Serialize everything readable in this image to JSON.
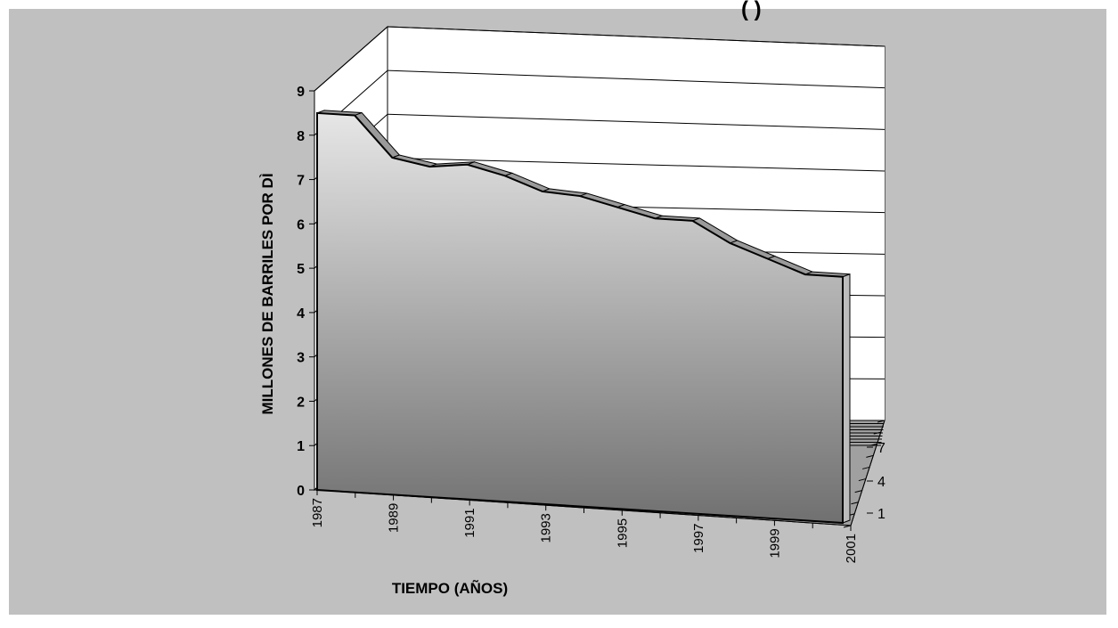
{
  "chart_data": {
    "type": "area",
    "title_fragment": "(                    )",
    "xlabel": "TIEMPO (AÑOS)",
    "ylabel": "MILLONES DE BARRILES POR DÌ",
    "ylim": [
      0,
      9
    ],
    "yticks": [
      "0",
      "1",
      "2",
      "3",
      "4",
      "5",
      "6",
      "7",
      "8",
      "9"
    ],
    "xticks": [
      "1987",
      "1989",
      "1991",
      "1993",
      "1995",
      "1997",
      "1999",
      "2001"
    ],
    "depth_ticks": [
      "1",
      "4",
      "7"
    ],
    "x": [
      1987,
      1988,
      1989,
      1990,
      1991,
      1992,
      1993,
      1994,
      1995,
      1996,
      1997,
      1998,
      1999,
      2000,
      2001
    ],
    "series": [
      {
        "values": [
          8.5,
          8.5,
          7.6,
          7.45,
          7.55,
          7.35,
          7.05,
          7.0,
          6.8,
          6.6,
          6.6,
          6.15,
          5.85,
          5.55,
          5.55
        ]
      }
    ],
    "grid": true,
    "colors": {
      "background": "#c0c0c0",
      "area_top": "#e6e6e6",
      "area_bottom": "#707070",
      "walls": "#ffffff"
    }
  }
}
